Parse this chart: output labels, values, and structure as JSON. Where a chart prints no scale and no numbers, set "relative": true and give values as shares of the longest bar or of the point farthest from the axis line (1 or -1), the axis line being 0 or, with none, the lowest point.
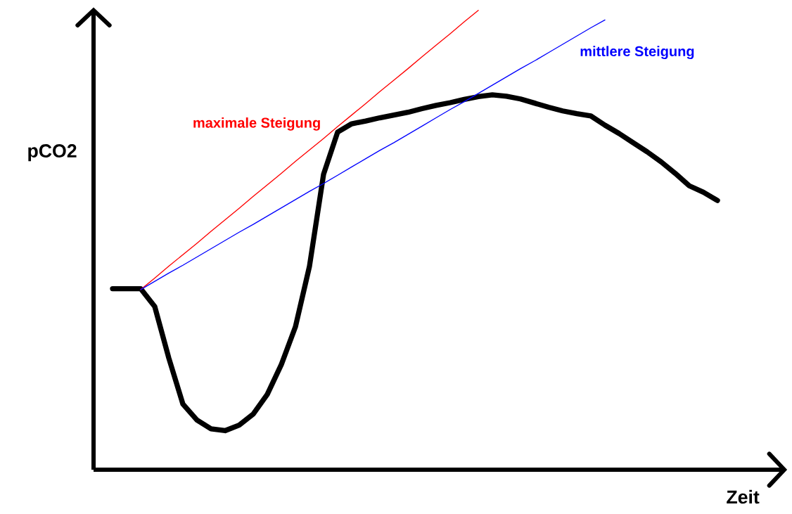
{
  "chart_data": {
    "type": "line",
    "xlabel": "Zeit",
    "ylabel": "pCO2",
    "relative": true,
    "marker": "none",
    "line_style": "solid",
    "categories": [
      null,
      null,
      null,
      null,
      null,
      null,
      null,
      null,
      null,
      null,
      null,
      null,
      null,
      null,
      null,
      null,
      null,
      null,
      null,
      null,
      null,
      null,
      null,
      null,
      null,
      null,
      null,
      null,
      null,
      null,
      null,
      null,
      null,
      null,
      null,
      null,
      null,
      null,
      null,
      null,
      null,
      null,
      null,
      null
    ],
    "series": [
      {
        "color": "#000000",
        "values": [
          0.394,
          0.394,
          0.394,
          0.355,
          0.243,
          0.143,
          0.108,
          0.089,
          0.085,
          0.097,
          0.121,
          0.164,
          0.229,
          0.311,
          0.443,
          0.643,
          0.735,
          0.753,
          0.759,
          0.766,
          0.772,
          0.778,
          0.786,
          0.793,
          0.799,
          0.806,
          0.812,
          0.816,
          0.813,
          0.807,
          0.798,
          0.789,
          0.781,
          0.775,
          0.77,
          0.75,
          0.732,
          0.712,
          0.692,
          0.67,
          0.645,
          0.618,
          0.604,
          0.586
        ]
      },
      {
        "name": "maximale Steigung",
        "color": "#ff0000",
        "values": [
          null,
          null,
          0.392,
          0.417,
          0.443,
          0.468,
          0.493,
          0.519,
          0.544,
          0.569,
          0.595,
          0.62,
          0.645,
          0.671,
          0.696,
          0.721,
          0.747,
          0.772,
          0.797,
          0.823,
          0.848,
          0.873,
          0.899,
          0.924,
          0.949,
          0.975,
          1.0,
          null,
          null,
          null,
          null,
          null,
          null,
          null,
          null,
          null,
          null,
          null,
          null,
          null,
          null,
          null,
          null,
          null
        ]
      },
      {
        "name": "mittlere Steigung",
        "color": "#0000ff",
        "values": [
          null,
          null,
          0.392,
          0.41,
          0.428,
          0.445,
          0.463,
          0.481,
          0.499,
          0.517,
          0.534,
          0.552,
          0.57,
          0.588,
          0.606,
          0.623,
          0.641,
          0.659,
          0.677,
          0.695,
          0.712,
          0.73,
          0.748,
          0.766,
          0.784,
          0.801,
          0.819,
          0.837,
          0.855,
          0.873,
          0.89,
          0.908,
          0.926,
          0.944,
          0.962,
          0.979,
          null,
          null,
          null,
          null,
          null,
          null,
          null,
          null
        ]
      }
    ]
  }
}
